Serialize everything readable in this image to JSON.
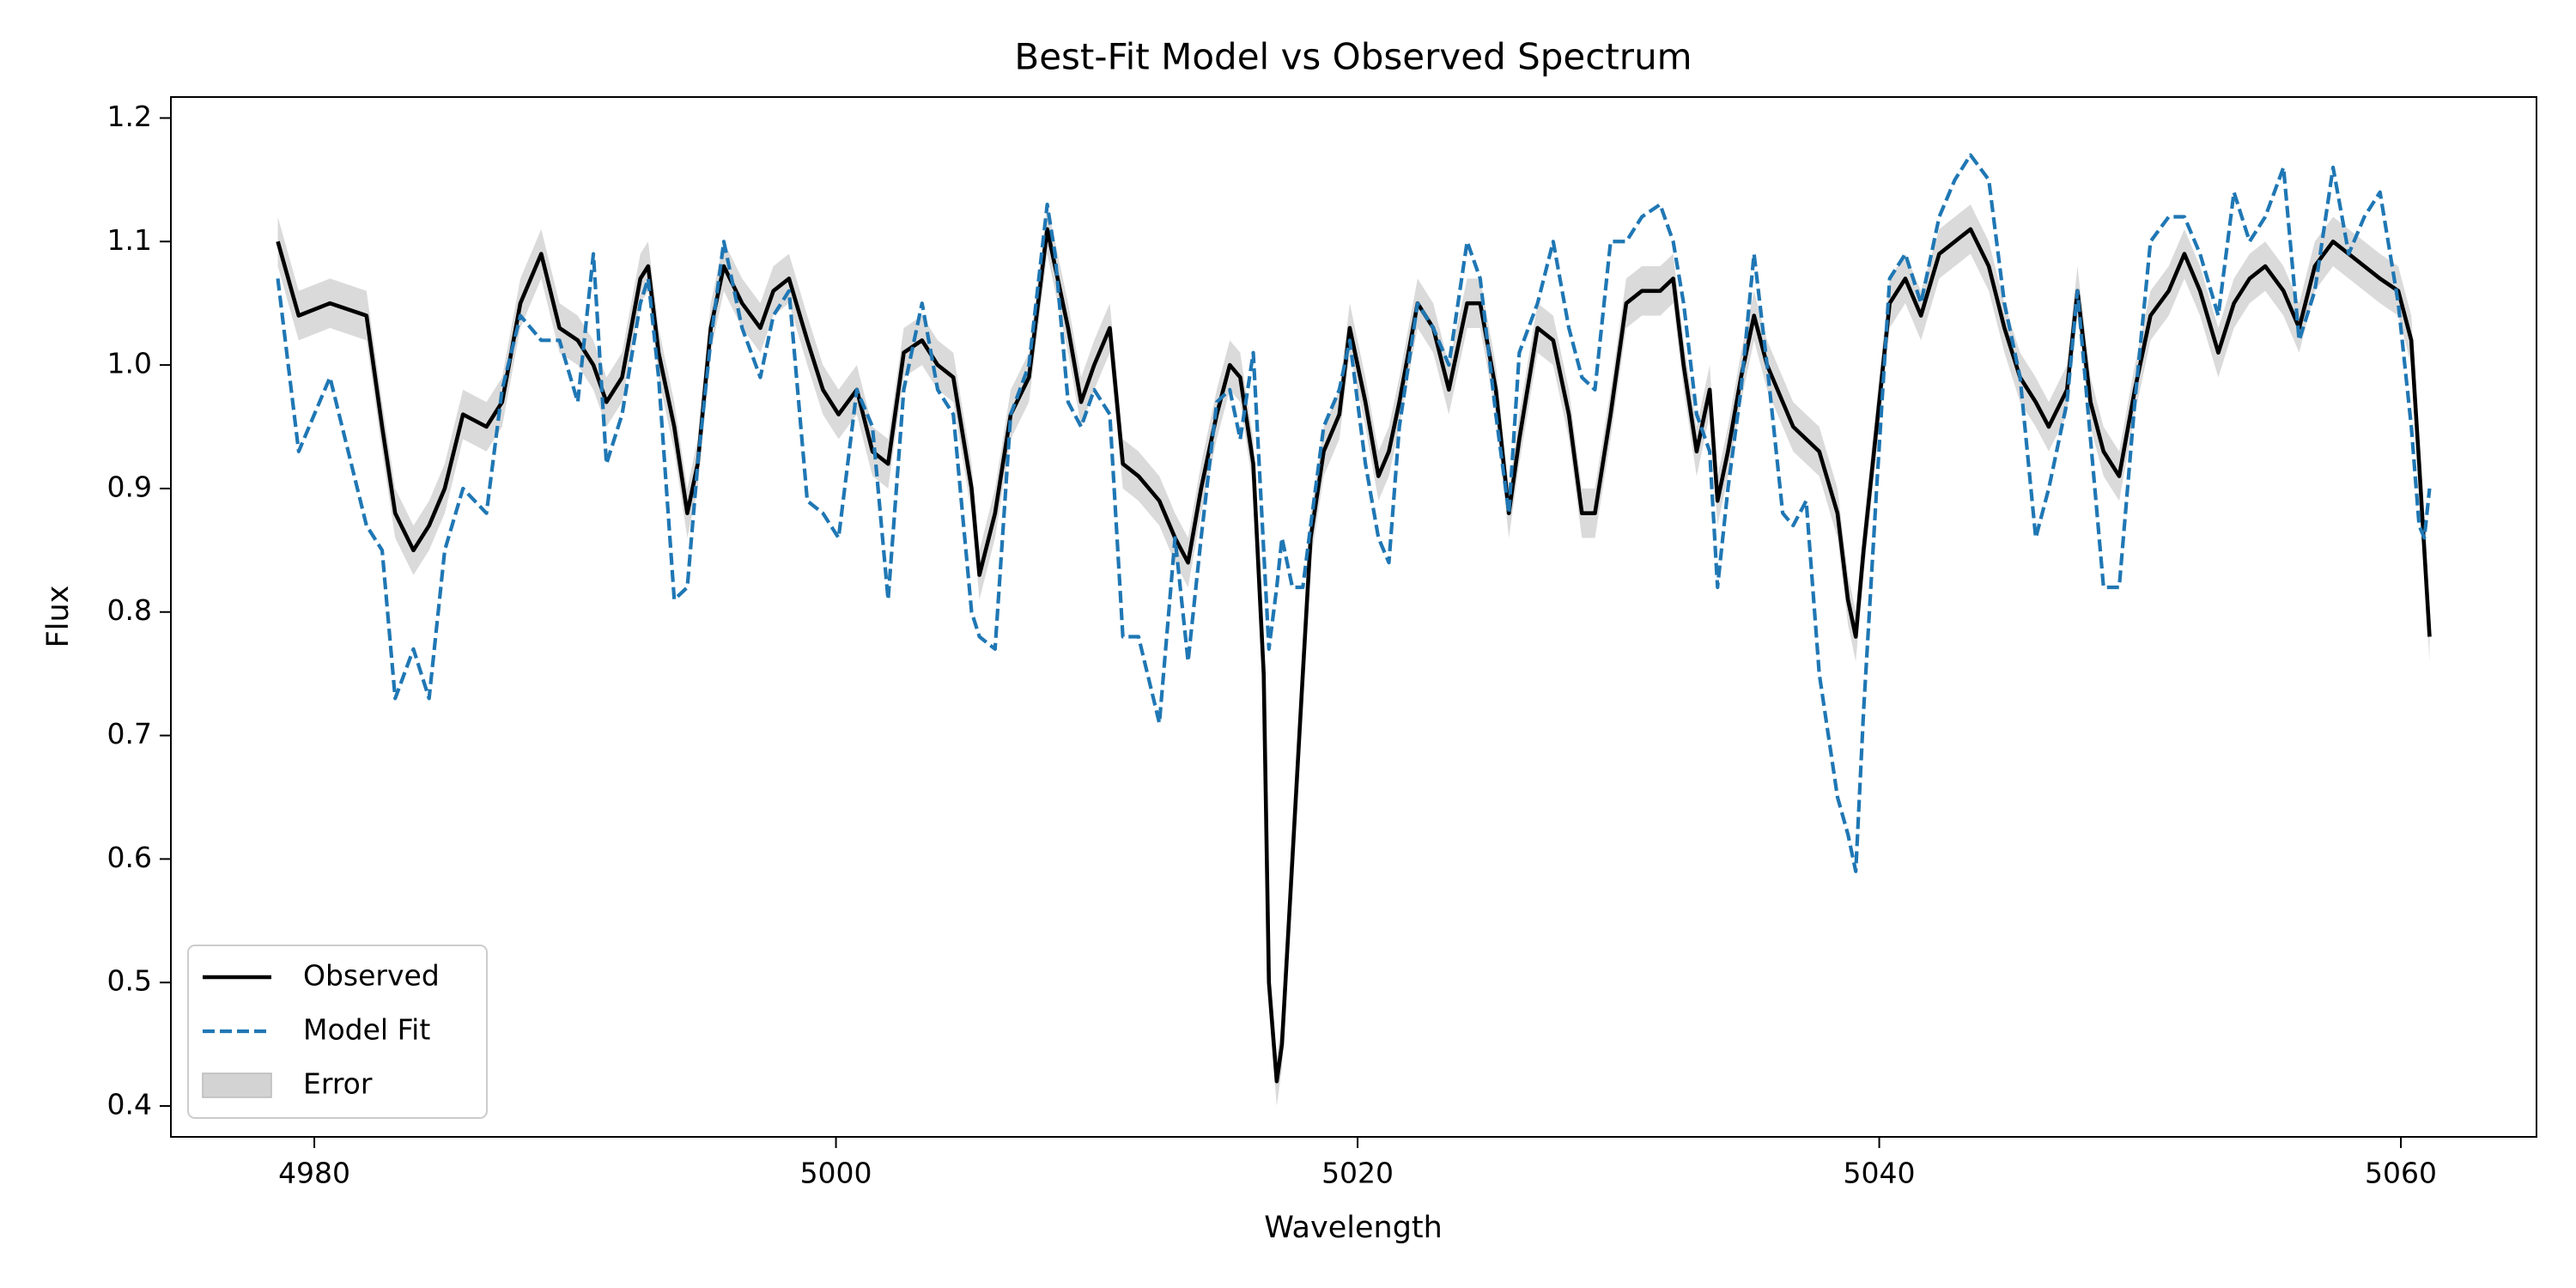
{
  "chart_data": {
    "type": "line",
    "title": "Best-Fit Model vs Observed Spectrum",
    "x_label": "Wavelength",
    "y_label": "Flux",
    "x": [
      4978.6,
      4979.4,
      4980.6,
      4982.0,
      4982.6,
      4983.1,
      4983.8,
      4984.4,
      4985.0,
      4985.7,
      4986.6,
      4987.2,
      4987.9,
      4988.7,
      4989.4,
      4990.1,
      4990.7,
      4991.2,
      4991.8,
      4992.5,
      4992.8,
      4993.2,
      4993.8,
      4994.3,
      4994.7,
      4995.2,
      4995.7,
      4996.4,
      4997.1,
      4997.6,
      4998.2,
      4998.9,
      4999.5,
      5000.1,
      5000.8,
      5001.4,
      5002.0,
      5002.6,
      5003.3,
      5003.9,
      5004.5,
      5005.2,
      5005.5,
      5006.1,
      5006.7,
      5007.4,
      5008.1,
      5008.4,
      5008.9,
      5009.4,
      5009.9,
      5010.5,
      5011.0,
      5011.6,
      5012.4,
      5013.0,
      5013.5,
      5014.0,
      5014.6,
      5015.1,
      5015.5,
      5016.0,
      5016.4,
      5016.6,
      5016.9,
      5017.1,
      5017.5,
      5017.9,
      5018.2,
      5018.7,
      5019.3,
      5019.7,
      5020.3,
      5020.8,
      5021.2,
      5021.6,
      5022.3,
      5022.9,
      5023.5,
      5024.2,
      5024.7,
      5025.3,
      5025.8,
      5026.2,
      5026.9,
      5027.5,
      5028.1,
      5028.6,
      5029.1,
      5029.7,
      5030.3,
      5030.9,
      5031.6,
      5032.1,
      5032.5,
      5033.0,
      5033.5,
      5033.8,
      5034.2,
      5034.7,
      5035.2,
      5035.7,
      5036.3,
      5036.7,
      5037.2,
      5037.7,
      5038.4,
      5038.8,
      5039.1,
      5039.4,
      5039.9,
      5040.4,
      5041.0,
      5041.6,
      5042.3,
      5042.9,
      5043.5,
      5044.2,
      5044.8,
      5045.4,
      5046.0,
      5046.5,
      5047.2,
      5047.6,
      5048.1,
      5048.6,
      5049.2,
      5049.8,
      5050.4,
      5051.1,
      5051.7,
      5052.3,
      5053.0,
      5053.6,
      5054.2,
      5054.8,
      5055.5,
      5056.1,
      5056.7,
      5057.4,
      5058.0,
      5058.6,
      5059.2,
      5059.9,
      5060.4,
      5060.7,
      5060.9,
      5061.1
    ],
    "series": [
      {
        "name": "Observed",
        "color": "#000000",
        "dash": false,
        "values": [
          1.1,
          1.04,
          1.05,
          1.04,
          0.95,
          0.88,
          0.85,
          0.87,
          0.9,
          0.96,
          0.95,
          0.97,
          1.05,
          1.09,
          1.03,
          1.02,
          1.0,
          0.97,
          0.99,
          1.07,
          1.08,
          1.01,
          0.95,
          0.88,
          0.92,
          1.03,
          1.08,
          1.05,
          1.03,
          1.06,
          1.07,
          1.02,
          0.98,
          0.96,
          0.98,
          0.93,
          0.92,
          1.01,
          1.02,
          1.0,
          0.99,
          0.9,
          0.83,
          0.88,
          0.96,
          0.99,
          1.11,
          1.08,
          1.03,
          0.97,
          1.0,
          1.03,
          0.92,
          0.91,
          0.89,
          0.86,
          0.84,
          0.9,
          0.96,
          1.0,
          0.99,
          0.92,
          0.75,
          0.5,
          0.42,
          0.45,
          0.6,
          0.75,
          0.86,
          0.93,
          0.96,
          1.03,
          0.97,
          0.91,
          0.93,
          0.97,
          1.05,
          1.03,
          0.98,
          1.05,
          1.05,
          0.98,
          0.88,
          0.94,
          1.03,
          1.02,
          0.96,
          0.88,
          0.88,
          0.96,
          1.05,
          1.06,
          1.06,
          1.07,
          1.0,
          0.93,
          0.98,
          0.89,
          0.93,
          0.99,
          1.04,
          1.0,
          0.97,
          0.95,
          0.94,
          0.93,
          0.88,
          0.81,
          0.78,
          0.85,
          0.95,
          1.05,
          1.07,
          1.04,
          1.09,
          1.1,
          1.11,
          1.08,
          1.03,
          0.99,
          0.97,
          0.95,
          0.98,
          1.06,
          0.97,
          0.93,
          0.91,
          0.98,
          1.04,
          1.06,
          1.09,
          1.06,
          1.01,
          1.05,
          1.07,
          1.08,
          1.06,
          1.03,
          1.08,
          1.1,
          1.09,
          1.08,
          1.07,
          1.06,
          1.02,
          0.92,
          0.85,
          0.78
        ]
      },
      {
        "name": "Model Fit",
        "color": "#1f77b4",
        "dash": true,
        "values": [
          1.07,
          0.93,
          0.99,
          0.87,
          0.85,
          0.73,
          0.77,
          0.73,
          0.85,
          0.9,
          0.88,
          0.98,
          1.04,
          1.02,
          1.02,
          0.97,
          1.09,
          0.92,
          0.96,
          1.05,
          1.07,
          0.99,
          0.81,
          0.82,
          0.92,
          1.02,
          1.1,
          1.03,
          0.99,
          1.04,
          1.06,
          0.89,
          0.88,
          0.86,
          0.98,
          0.95,
          0.81,
          0.98,
          1.05,
          0.98,
          0.96,
          0.8,
          0.78,
          0.77,
          0.96,
          1.0,
          1.13,
          1.09,
          0.97,
          0.95,
          0.98,
          0.96,
          0.78,
          0.78,
          0.71,
          0.86,
          0.76,
          0.86,
          0.97,
          0.98,
          0.94,
          1.01,
          0.85,
          0.77,
          0.82,
          0.86,
          0.82,
          0.82,
          0.87,
          0.95,
          0.98,
          1.02,
          0.92,
          0.86,
          0.84,
          0.95,
          1.05,
          1.03,
          1.0,
          1.1,
          1.07,
          0.96,
          0.88,
          1.01,
          1.05,
          1.1,
          1.03,
          0.99,
          0.98,
          1.1,
          1.1,
          1.12,
          1.13,
          1.1,
          1.05,
          0.96,
          0.93,
          0.82,
          0.9,
          0.98,
          1.09,
          1.0,
          0.88,
          0.87,
          0.89,
          0.75,
          0.65,
          0.62,
          0.59,
          0.72,
          0.9,
          1.07,
          1.09,
          1.05,
          1.12,
          1.15,
          1.17,
          1.15,
          1.05,
          0.99,
          0.86,
          0.9,
          0.97,
          1.06,
          0.94,
          0.82,
          0.82,
          0.97,
          1.1,
          1.12,
          1.12,
          1.09,
          1.04,
          1.14,
          1.1,
          1.12,
          1.16,
          1.02,
          1.06,
          1.16,
          1.09,
          1.12,
          1.14,
          1.05,
          0.95,
          0.87,
          0.86,
          0.9
        ]
      },
      {
        "name": "Error",
        "color": "#d3d3d3",
        "band": true,
        "values": [
          0.02,
          0.02,
          0.02,
          0.02,
          0.02,
          0.02,
          0.02,
          0.02,
          0.02,
          0.02,
          0.02,
          0.02,
          0.02,
          0.02,
          0.02,
          0.02,
          0.02,
          0.02,
          0.02,
          0.02,
          0.02,
          0.02,
          0.02,
          0.02,
          0.02,
          0.02,
          0.02,
          0.02,
          0.02,
          0.02,
          0.02,
          0.02,
          0.02,
          0.02,
          0.02,
          0.02,
          0.02,
          0.02,
          0.02,
          0.02,
          0.02,
          0.02,
          0.02,
          0.02,
          0.02,
          0.02,
          0.02,
          0.02,
          0.02,
          0.02,
          0.02,
          0.02,
          0.02,
          0.02,
          0.02,
          0.02,
          0.02,
          0.02,
          0.02,
          0.02,
          0.02,
          0.02,
          0.02,
          0.02,
          0.02,
          0.02,
          0.02,
          0.02,
          0.02,
          0.02,
          0.02,
          0.02,
          0.02,
          0.02,
          0.02,
          0.02,
          0.02,
          0.02,
          0.02,
          0.02,
          0.02,
          0.02,
          0.02,
          0.02,
          0.02,
          0.02,
          0.02,
          0.02,
          0.02,
          0.02,
          0.02,
          0.02,
          0.02,
          0.02,
          0.02,
          0.02,
          0.02,
          0.02,
          0.02,
          0.02,
          0.02,
          0.02,
          0.02,
          0.02,
          0.02,
          0.02,
          0.02,
          0.02,
          0.02,
          0.02,
          0.02,
          0.02,
          0.02,
          0.02,
          0.02,
          0.02,
          0.02,
          0.02,
          0.02,
          0.02,
          0.02,
          0.02,
          0.02,
          0.02,
          0.02,
          0.02,
          0.02,
          0.02,
          0.02,
          0.02,
          0.02,
          0.02,
          0.02,
          0.02,
          0.02,
          0.02,
          0.02,
          0.02,
          0.02,
          0.02,
          0.02,
          0.02,
          0.02,
          0.02,
          0.02,
          0.02,
          0.02,
          0.02
        ]
      }
    ],
    "xlim": [
      4974.5,
      5065.2
    ],
    "xticks": [
      4980,
      5000,
      5020,
      5040,
      5060
    ],
    "ylim": [
      0.375,
      1.217
    ],
    "yticks": [
      0.4,
      0.5,
      0.6,
      0.7,
      0.8,
      0.9,
      {
        "value": 1,
        "label": "1.0"
      },
      1.1,
      1.2
    ],
    "grid": false,
    "legend": "lower left"
  }
}
